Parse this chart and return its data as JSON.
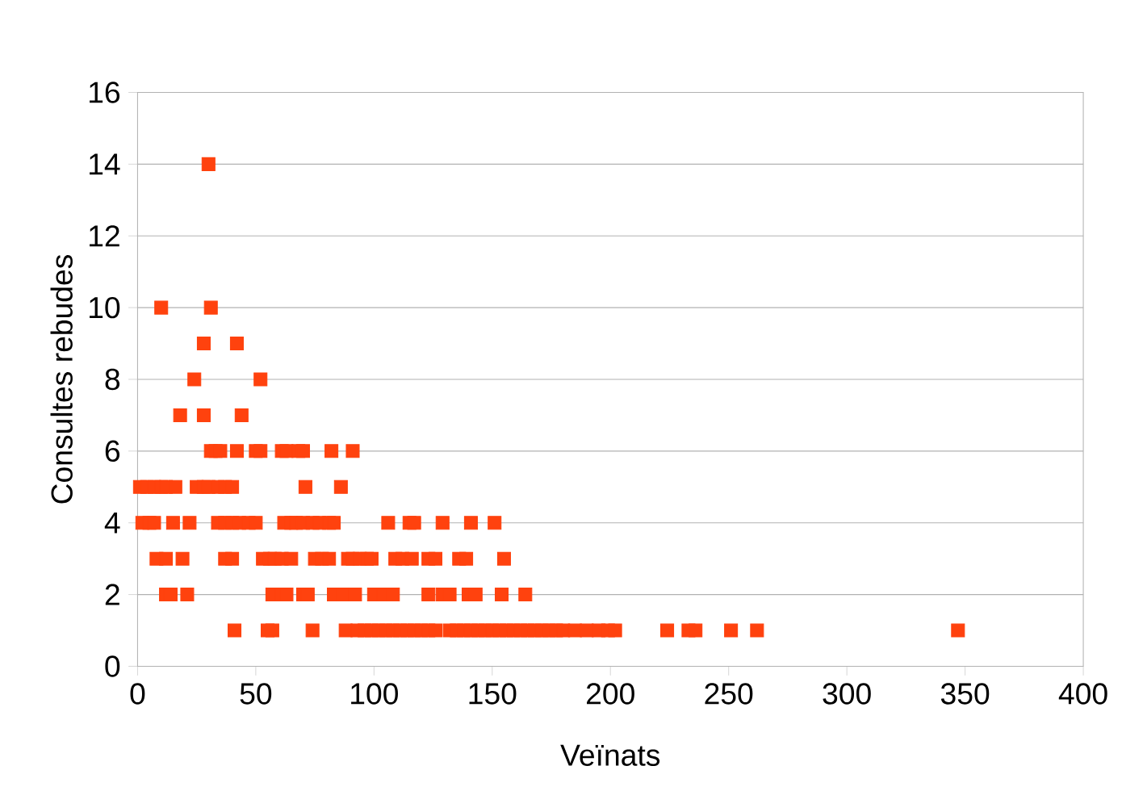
{
  "chart_data": {
    "type": "scatter",
    "xlabel": "Veïnats",
    "ylabel": "Consultes rebudes",
    "xlim": [
      0,
      400
    ],
    "ylim": [
      0,
      16
    ],
    "xticks": [
      0,
      50,
      100,
      150,
      200,
      250,
      300,
      350,
      400
    ],
    "yticks": [
      0,
      2,
      4,
      6,
      8,
      10,
      12,
      14,
      16
    ],
    "grid": "y",
    "marker": "square",
    "series": [
      {
        "color": "#ff420e",
        "x": [
          30,
          10,
          31,
          28,
          42,
          24,
          52,
          18,
          28,
          44,
          31,
          33,
          35,
          42,
          50,
          52,
          61,
          63,
          68,
          70,
          82,
          91,
          1,
          4,
          7,
          10,
          12,
          16,
          25,
          28,
          30,
          34,
          37,
          40,
          71,
          86,
          2,
          5,
          7,
          15,
          22,
          34,
          37,
          40,
          43,
          47,
          50,
          62,
          65,
          67,
          70,
          74,
          77,
          81,
          83,
          106,
          115,
          117,
          129,
          141,
          151,
          8,
          12,
          19,
          37,
          40,
          53,
          56,
          58,
          61,
          65,
          75,
          78,
          81,
          89,
          91,
          94,
          97,
          99,
          109,
          112,
          116,
          123,
          126,
          136,
          139,
          155,
          12,
          14,
          21,
          57,
          61,
          63,
          70,
          72,
          83,
          87,
          92,
          100,
          104,
          108,
          123,
          129,
          132,
          140,
          143,
          154,
          164,
          41,
          55,
          57,
          74,
          88,
          93,
          96,
          99,
          102,
          105,
          108,
          111,
          114,
          117,
          120,
          123,
          126,
          132,
          135,
          138,
          141,
          144,
          147,
          150,
          153,
          156,
          159,
          162,
          165,
          168,
          171,
          174,
          177,
          180,
          185,
          190,
          195,
          199,
          202,
          224,
          233,
          236,
          251,
          262,
          347
        ],
        "values": [
          14,
          10,
          10,
          9,
          9,
          8,
          8,
          7,
          7,
          7,
          6,
          6,
          6,
          6,
          6,
          6,
          6,
          6,
          6,
          6,
          6,
          6,
          5,
          5,
          5,
          5,
          5,
          5,
          5,
          5,
          5,
          5,
          5,
          5,
          5,
          5,
          4,
          4,
          4,
          4,
          4,
          4,
          4,
          4,
          4,
          4,
          4,
          4,
          4,
          4,
          4,
          4,
          4,
          4,
          4,
          4,
          4,
          4,
          4,
          4,
          4,
          3,
          3,
          3,
          3,
          3,
          3,
          3,
          3,
          3,
          3,
          3,
          3,
          3,
          3,
          3,
          3,
          3,
          3,
          3,
          3,
          3,
          3,
          3,
          3,
          3,
          3,
          2,
          2,
          2,
          2,
          2,
          2,
          2,
          2,
          2,
          2,
          2,
          2,
          2,
          2,
          2,
          2,
          2,
          2,
          2,
          2,
          2,
          1,
          1,
          1,
          1,
          1,
          1,
          1,
          1,
          1,
          1,
          1,
          1,
          1,
          1,
          1,
          1,
          1,
          1,
          1,
          1,
          1,
          1,
          1,
          1,
          1,
          1,
          1,
          1,
          1,
          1,
          1,
          1,
          1,
          1,
          1,
          1,
          1,
          1,
          1,
          1,
          1,
          1,
          1,
          1,
          1
        ]
      }
    ]
  }
}
